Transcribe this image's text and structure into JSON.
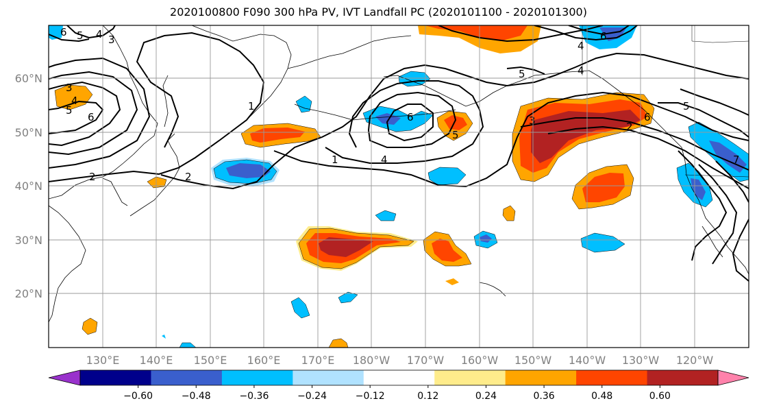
{
  "title": "2020100800 F090 300 hPa PV, IVT Landfall PC (2020101100 - 2020101300)",
  "lat_labels": [
    "60°N",
    "50°N",
    "40°N",
    "30°N",
    "20°N"
  ],
  "lon_labels": [
    "130°E",
    "140°E",
    "150°E",
    "160°E",
    "170°E",
    "180°W",
    "170°W",
    "160°W",
    "150°W",
    "140°W",
    "130°W",
    "120°W"
  ],
  "colorbar": {
    "colors": [
      "#9932cc",
      "#00008b",
      "#3a5fcd",
      "#00bfff",
      "#b0e2ff",
      "#ffffff",
      "#ffec8b",
      "#ffa500",
      "#ff4500",
      "#b22222",
      "#ff82ab"
    ],
    "tick_labels": [
      "−0.60",
      "−0.48",
      "−0.36",
      "−0.24",
      "−0.12",
      "0.12",
      "0.24",
      "0.36",
      "0.48",
      "0.60"
    ]
  },
  "contour_labels": [
    "6",
    "5",
    "4",
    "3",
    "3",
    "4",
    "5",
    "6",
    "2",
    "1",
    "2",
    "1",
    "4",
    "6",
    "5",
    "5",
    "4",
    "3",
    "2",
    "6",
    "5",
    "6",
    "4",
    "7"
  ]
}
